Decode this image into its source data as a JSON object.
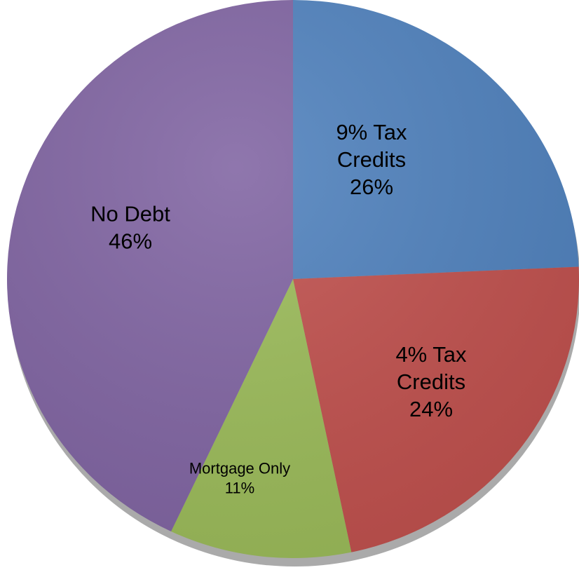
{
  "chart_data": {
    "type": "pie",
    "categories": [
      "9% Tax Credits",
      "4% Tax Credits",
      "Mortgage Only",
      "No Debt"
    ],
    "values": [
      26,
      24,
      11,
      46
    ],
    "value_labels": [
      "26%",
      "24%",
      "11%",
      "46%"
    ],
    "colors": [
      "#4f81bd",
      "#c0504d",
      "#9bbb59",
      "#8064a2"
    ]
  }
}
